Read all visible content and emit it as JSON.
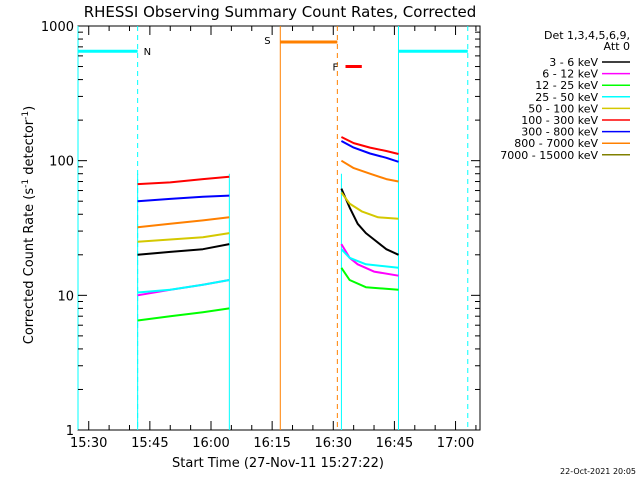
{
  "chart_data": {
    "type": "line",
    "title": "RHESSI Observing Summary Count Rates, Corrected",
    "xlabel": "Start Time (27-Nov-11 15:27:22)",
    "ylabel": "Corrected Count Rate (s⁻¹ detector⁻¹)",
    "ylabel_parts": {
      "a": "Corrected Count Rate (s",
      "b": "-1",
      "c": " detector",
      "d": "-1",
      "e": ")"
    },
    "yscale": "log",
    "xlim": [
      "15:27:22",
      "17:06:00"
    ],
    "ylim": [
      1,
      1000
    ],
    "x_ticks": [
      "15:30",
      "15:45",
      "16:00",
      "16:15",
      "16:30",
      "16:45",
      "17:00"
    ],
    "y_ticks": [
      {
        "value": 1,
        "label": "1"
      },
      {
        "value": 10,
        "label": "10"
      },
      {
        "value": 100,
        "label": "100"
      },
      {
        "value": 1000,
        "label": "1000"
      }
    ],
    "legend": {
      "placement": "right",
      "header": [
        "Det 1,3,4,5,6,9,",
        "Att 0"
      ],
      "entries": [
        {
          "label": "3 - 6 keV",
          "color": "#000000"
        },
        {
          "label": "6 - 12 keV",
          "color": "#ff00ff"
        },
        {
          "label": "12 - 25 keV",
          "color": "#00ff00"
        },
        {
          "label": "25 - 50 keV",
          "color": "#00ffff"
        },
        {
          "label": "50 - 100 keV",
          "color": "#d4c800"
        },
        {
          "label": "100 - 300 keV",
          "color": "#ff0000"
        },
        {
          "label": "300 - 800 keV",
          "color": "#0000ff"
        },
        {
          "label": "800 - 7000 keV",
          "color": "#ff8000"
        },
        {
          "label": "7000 - 15000 keV",
          "color": "#808000"
        }
      ]
    },
    "segments": [
      {
        "start": "15:42:00",
        "end": "16:04:30"
      },
      {
        "start": "16:32:00",
        "end": "16:46:00"
      }
    ],
    "series": [
      {
        "name": "3 - 6 keV",
        "color": "#000000",
        "segments": [
          [
            [
              "15:42:00",
              20
            ],
            [
              "15:50:00",
              21
            ],
            [
              "15:58:00",
              22
            ],
            [
              "16:04:30",
              24
            ]
          ],
          [
            [
              "16:32:00",
              62
            ],
            [
              "16:34:00",
              45
            ],
            [
              "16:36:00",
              34
            ],
            [
              "16:38:00",
              29
            ],
            [
              "16:40:00",
              26
            ],
            [
              "16:43:00",
              22
            ],
            [
              "16:46:00",
              20
            ]
          ]
        ]
      },
      {
        "name": "6 - 12 keV",
        "color": "#ff00ff",
        "segments": [
          [
            [
              "15:42:00",
              10
            ],
            [
              "15:50:00",
              11
            ],
            [
              "15:58:00",
              12
            ],
            [
              "16:04:30",
              13
            ]
          ],
          [
            [
              "16:32:00",
              24
            ],
            [
              "16:34:00",
              19
            ],
            [
              "16:36:00",
              17
            ],
            [
              "16:40:00",
              15
            ],
            [
              "16:46:00",
              14
            ]
          ]
        ]
      },
      {
        "name": "12 - 25 keV",
        "color": "#00ff00",
        "segments": [
          [
            [
              "15:42:00",
              6.5
            ],
            [
              "15:50:00",
              7
            ],
            [
              "15:58:00",
              7.5
            ],
            [
              "16:04:30",
              8
            ]
          ],
          [
            [
              "16:32:00",
              16
            ],
            [
              "16:34:00",
              13
            ],
            [
              "16:38:00",
              11.5
            ],
            [
              "16:46:00",
              11
            ]
          ]
        ]
      },
      {
        "name": "25 - 50 keV",
        "color": "#00ffff",
        "segments": [
          [
            [
              "15:42:00",
              10.5
            ],
            [
              "15:50:00",
              11
            ],
            [
              "15:58:00",
              12
            ],
            [
              "16:04:30",
              13
            ]
          ],
          [
            [
              "16:32:00",
              22
            ],
            [
              "16:34:00",
              19
            ],
            [
              "16:38:00",
              17
            ],
            [
              "16:46:00",
              16
            ]
          ]
        ]
      },
      {
        "name": "50 - 100 keV",
        "color": "#d4c800",
        "segments": [
          [
            [
              "15:42:00",
              25
            ],
            [
              "15:50:00",
              26
            ],
            [
              "15:58:00",
              27
            ],
            [
              "16:04:30",
              29
            ]
          ],
          [
            [
              "16:32:00",
              58
            ],
            [
              "16:34:00",
              48
            ],
            [
              "16:37:00",
              42
            ],
            [
              "16:41:00",
              38
            ],
            [
              "16:46:00",
              37
            ]
          ]
        ]
      },
      {
        "name": "100 - 300 keV",
        "color": "#ff0000",
        "segments": [
          [
            [
              "15:42:00",
              67
            ],
            [
              "15:50:00",
              69
            ],
            [
              "15:58:00",
              73
            ],
            [
              "16:04:30",
              76
            ]
          ],
          [
            [
              "16:32:00",
              150
            ],
            [
              "16:35:00",
              135
            ],
            [
              "16:39:00",
              125
            ],
            [
              "16:43:00",
              118
            ],
            [
              "16:46:00",
              112
            ]
          ]
        ]
      },
      {
        "name": "300 - 800 keV",
        "color": "#0000ff",
        "segments": [
          [
            [
              "15:42:00",
              50
            ],
            [
              "15:50:00",
              52
            ],
            [
              "15:58:00",
              54
            ],
            [
              "16:04:30",
              55
            ]
          ],
          [
            [
              "16:32:00",
              140
            ],
            [
              "16:35:00",
              125
            ],
            [
              "16:39:00",
              113
            ],
            [
              "16:43:00",
              105
            ],
            [
              "16:46:00",
              98
            ]
          ]
        ]
      },
      {
        "name": "800 - 7000 keV",
        "color": "#ff8000",
        "segments": [
          [
            [
              "15:42:00",
              32
            ],
            [
              "15:50:00",
              34
            ],
            [
              "15:58:00",
              36
            ],
            [
              "16:04:30",
              38
            ]
          ],
          [
            [
              "16:32:00",
              100
            ],
            [
              "16:35:00",
              88
            ],
            [
              "16:39:00",
              80
            ],
            [
              "16:43:00",
              73
            ],
            [
              "16:46:00",
              70
            ]
          ]
        ]
      }
    ],
    "annotations": {
      "night": {
        "label": "N",
        "color": "#00ffff",
        "times": [
          "15:27:22",
          "15:42:00",
          "16:46:00",
          "17:03:00"
        ],
        "bars": [
          [
            "15:27:22",
            "15:42:00"
          ],
          [
            "16:46:00",
            "17:03:00"
          ]
        ],
        "level": 650
      },
      "saa": {
        "label": "S",
        "color": "#ff8000",
        "times": [
          "16:17:00",
          "16:31:00"
        ],
        "bar": [
          "16:17:00",
          "16:31:00"
        ],
        "level": 760
      },
      "flare": {
        "label": "F",
        "color": "#ff0000",
        "bar": [
          "16:33:00",
          "16:37:00"
        ],
        "level": 500
      }
    },
    "grid": false
  },
  "timestamp": "22-Oct-2021 20:05"
}
